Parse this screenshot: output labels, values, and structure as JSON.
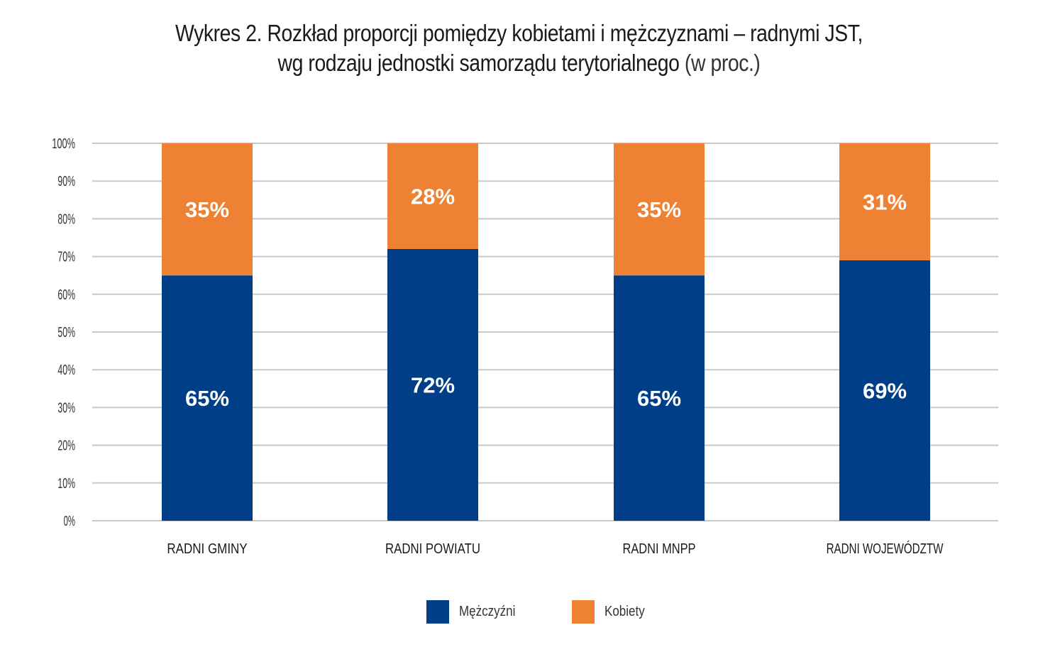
{
  "title": {
    "line1": "Wykres 2. Rozkład proporcji pomiędzy kobietami i mężczyznami – radnymi JST,",
    "line2_bold": "wg rodzaju jednostki samorządu terytorialnego",
    "line2_light": "(w proc.)"
  },
  "colors": {
    "men": "#003f87",
    "women": "#ee8133",
    "grid": "#c8c8c8",
    "label_inside": "#ffffff"
  },
  "chart_data": {
    "type": "bar",
    "stacked": true,
    "categories": [
      "RADNI GMINY",
      "RADNI POWIATU",
      "RADNI MNPP",
      "RADNI WOJEWÓDZTW"
    ],
    "series": [
      {
        "name": "Mężczyźni",
        "values": [
          65,
          72,
          65,
          69
        ],
        "labels": [
          "65%",
          "72%",
          "65%",
          "69%"
        ]
      },
      {
        "name": "Kobiety",
        "values": [
          35,
          28,
          35,
          31
        ],
        "labels": [
          "35%",
          "28%",
          "35%",
          "31%"
        ]
      }
    ],
    "ylim": [
      0,
      100
    ],
    "yticks": [
      "0%",
      "10%",
      "20%",
      "30%",
      "40%",
      "50%",
      "60%",
      "70%",
      "80%",
      "90%",
      "100%"
    ],
    "grid": true,
    "legend_position": "bottom-center"
  }
}
